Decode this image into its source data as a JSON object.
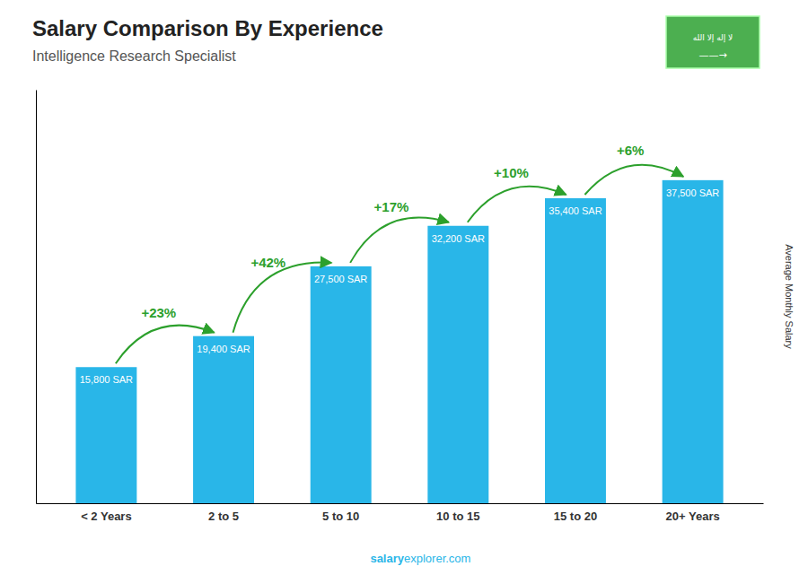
{
  "chart_data": {
    "type": "bar",
    "title": "Salary Comparison By Experience",
    "subtitle": "Intelligence Research Specialist",
    "categories": [
      "< 2 Years",
      "2 to 5",
      "5 to 10",
      "10 to 15",
      "15 to 20",
      "20+ Years"
    ],
    "values": [
      15800,
      19400,
      27500,
      32200,
      35400,
      37500
    ],
    "value_labels": [
      "15,800 SAR",
      "19,400 SAR",
      "27,500 SAR",
      "32,200 SAR",
      "35,400 SAR",
      "37,500 SAR"
    ],
    "data_labels": true,
    "color": "#29B6E8",
    "ylim": [
      0,
      48000
    ],
    "yticks": [],
    "tick_labels": "x",
    "grid": false,
    "ylabel": "Average Monthly Salary",
    "annotations": [
      "+23%",
      "+42%",
      "+17%",
      "+10%",
      "+6%"
    ],
    "footer": [
      "salary",
      "explorer.com"
    ],
    "flag_texts": [
      "لا إله إلا الله",
      "——→"
    ]
  }
}
